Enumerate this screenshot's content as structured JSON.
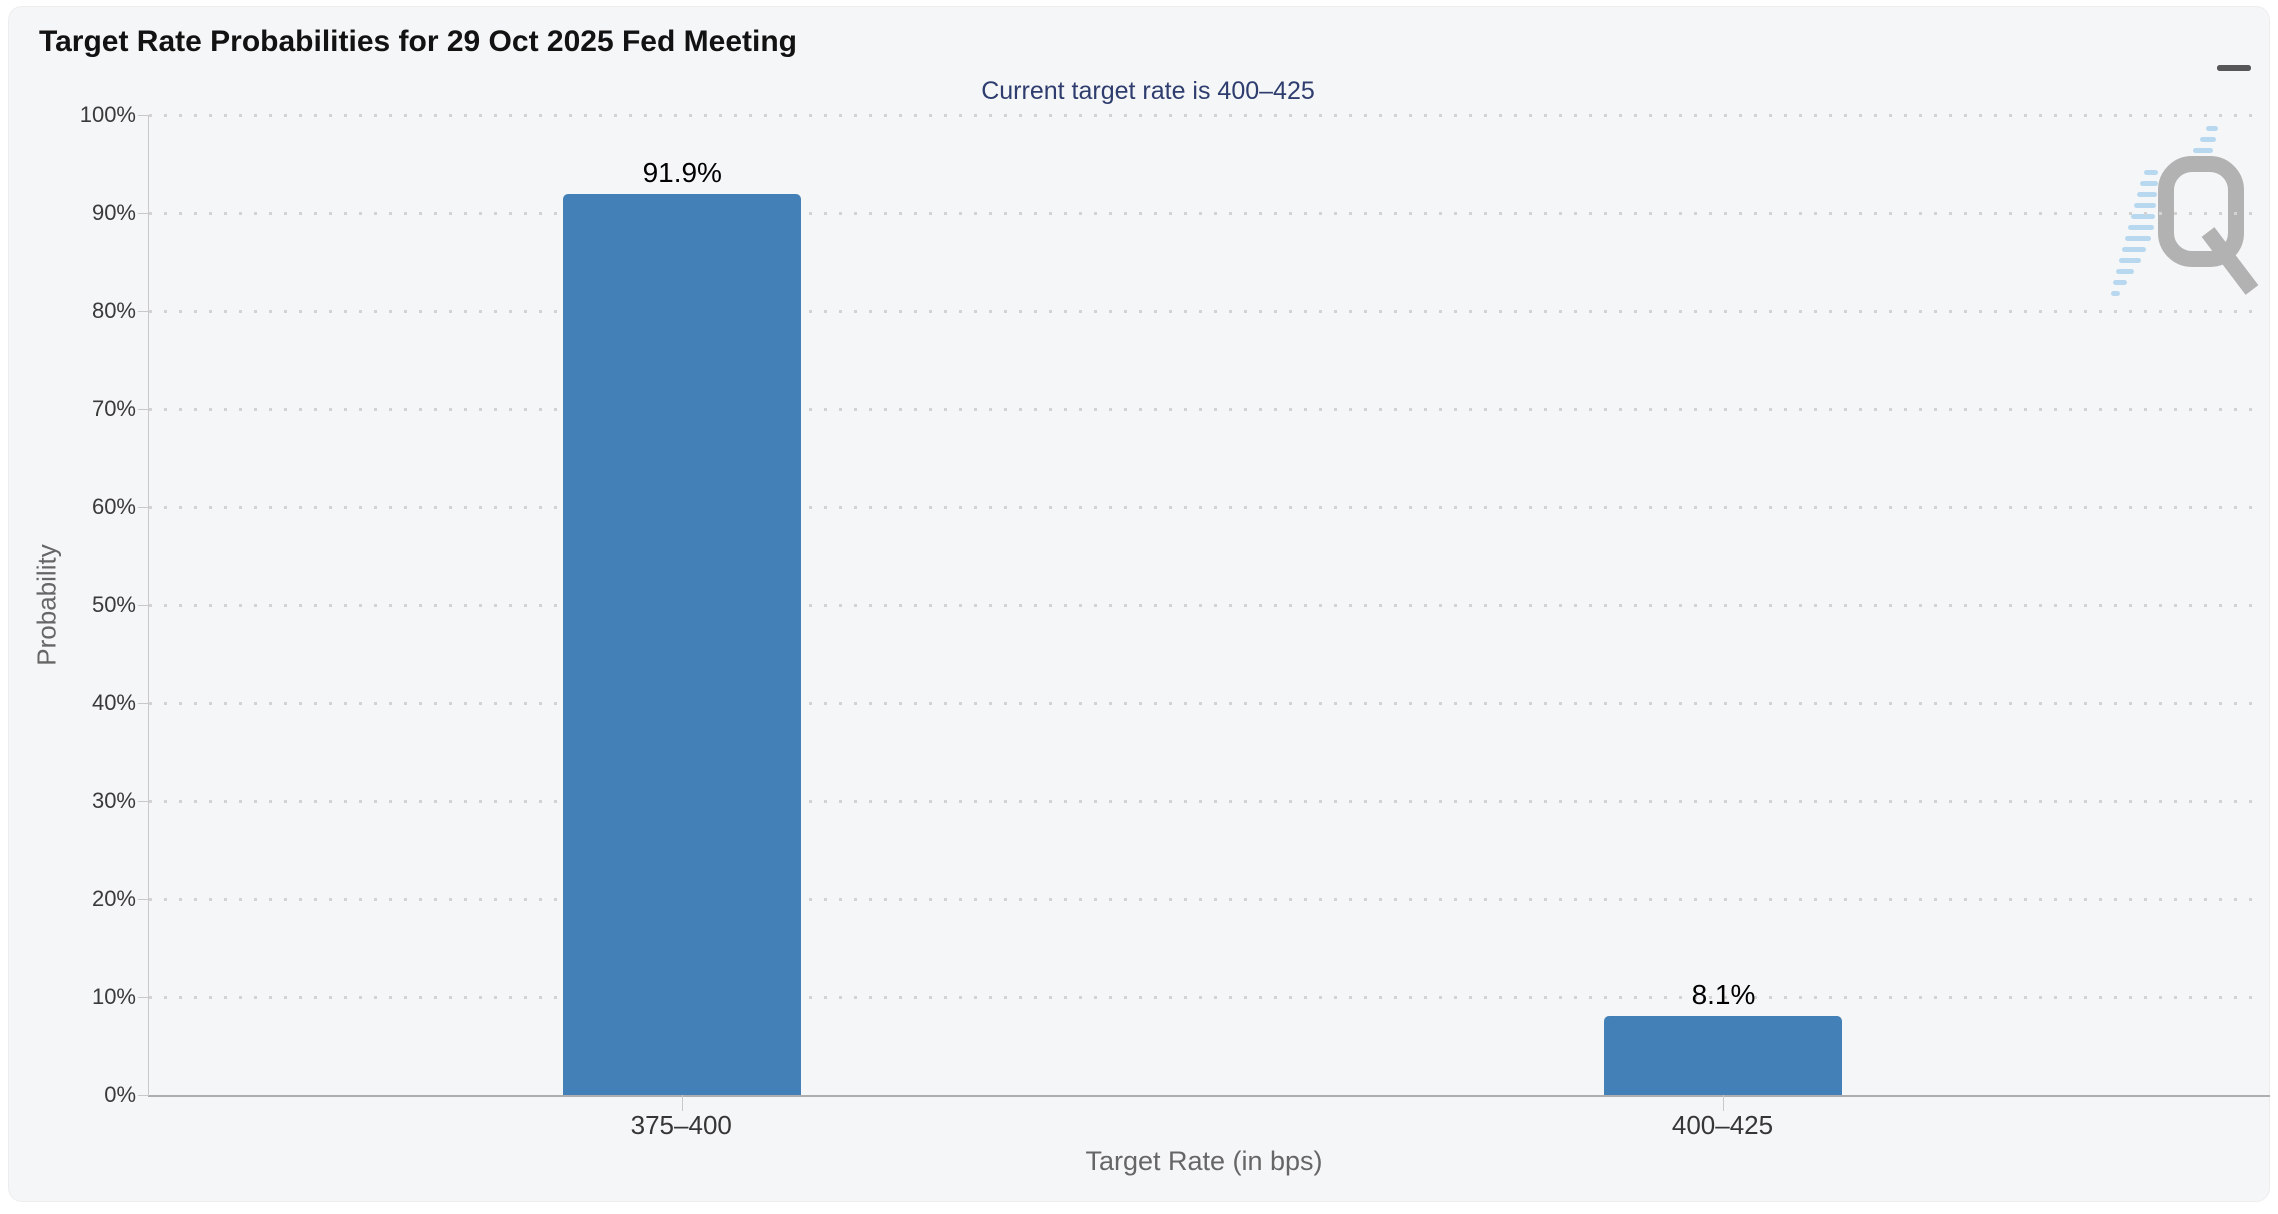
{
  "chart_data": {
    "type": "bar",
    "title": "Target Rate Probabilities for 29 Oct 2025 Fed Meeting",
    "subtitle": "Current target rate is 400–425",
    "categories": [
      "375–400",
      "400–425"
    ],
    "values": [
      91.9,
      8.1
    ],
    "value_labels": [
      "91.9%",
      "8.1%"
    ],
    "xlabel": "Target Rate (in bps)",
    "ylabel": "Probability",
    "ylim": [
      0,
      100
    ],
    "y_tick_labels": [
      "0%",
      "10%",
      "20%",
      "30%",
      "40%",
      "50%",
      "60%",
      "70%",
      "80%",
      "90%",
      "100%"
    ],
    "grid": "horizontal-dotted",
    "legend": "none",
    "bar_color": "#4480b8"
  },
  "colors": {
    "card_background": "#f5f6f7",
    "subtitle_text": "#2e3d6e",
    "bar_fill": "#4480b8",
    "watermark_gray": "#b2b2b2",
    "watermark_blue": "#b8d8f0"
  },
  "icons": {
    "menu": "hamburger-icon",
    "watermark": "quikstrike-q-logo"
  },
  "watermark": {
    "logo_letter": "Q"
  }
}
